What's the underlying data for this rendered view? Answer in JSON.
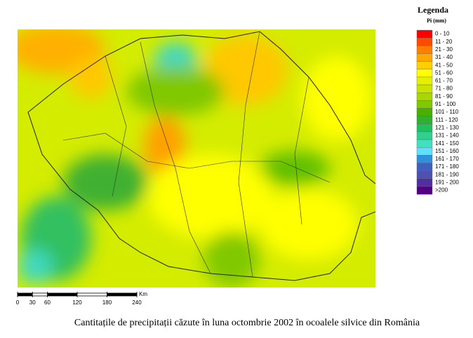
{
  "legend": {
    "title": "Legenda",
    "subtitle": "Pi (mm)",
    "items": [
      {
        "label": "0 - 10",
        "color": "#ff0000"
      },
      {
        "label": "11 - 20",
        "color": "#ff4a00"
      },
      {
        "label": "21 - 30",
        "color": "#ff8000"
      },
      {
        "label": "31 - 40",
        "color": "#ffa800"
      },
      {
        "label": "41 - 50",
        "color": "#ffd000"
      },
      {
        "label": "51 - 60",
        "color": "#ffff00"
      },
      {
        "label": "61 - 70",
        "color": "#e4f000"
      },
      {
        "label": "71 - 80",
        "color": "#c8e400"
      },
      {
        "label": "81 - 90",
        "color": "#a8d800"
      },
      {
        "label": "91 - 100",
        "color": "#80c800"
      },
      {
        "label": "101 - 110",
        "color": "#48b000"
      },
      {
        "label": "111 - 120",
        "color": "#30b030"
      },
      {
        "label": "121 - 130",
        "color": "#20c060"
      },
      {
        "label": "131 - 140",
        "color": "#30d090"
      },
      {
        "label": "141 - 150",
        "color": "#40e0c0"
      },
      {
        "label": "151 - 160",
        "color": "#60e0ff"
      },
      {
        "label": "161 - 170",
        "color": "#3090e0"
      },
      {
        "label": "171 - 180",
        "color": "#4060c0"
      },
      {
        "label": "181 - 190",
        "color": "#5050b0"
      },
      {
        "label": "191 - 200",
        "color": "#5030a0"
      },
      {
        "label": ">200",
        "color": "#500080"
      }
    ]
  },
  "scale": {
    "ticks": [
      0,
      30,
      60,
      120,
      180,
      240
    ],
    "unit": "Km"
  },
  "caption": "Cantitațile de precipitații căzute în luna octombrie 2002 în ocoalele silvice din România"
}
